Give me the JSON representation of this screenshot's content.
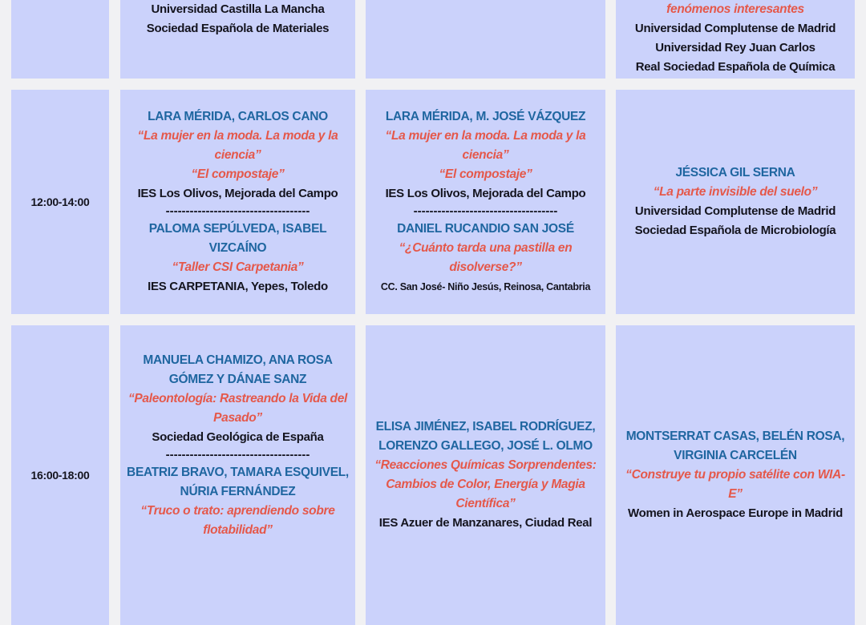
{
  "colors": {
    "cell": "#cbd2fb",
    "background": "#f1f1f3",
    "name": "#1f66a0",
    "title": "#e5584a",
    "org": "#14141e"
  },
  "rows": [
    {
      "time": "",
      "cells": [
        {
          "items": [
            {
              "type": "org",
              "text": "Universidad Castilla La Mancha"
            },
            {
              "type": "org",
              "text": "Sociedad Española de Materiales"
            }
          ]
        },
        {
          "items": []
        },
        {
          "items": [
            {
              "type": "title",
              "text": "fenómenos interesantes"
            },
            {
              "type": "org",
              "text": "Universidad Complutense de Madrid"
            },
            {
              "type": "org",
              "text": "Universidad Rey Juan Carlos"
            },
            {
              "type": "org",
              "text": "Real Sociedad Española de Química"
            }
          ]
        }
      ]
    },
    {
      "time": "12:00-14:00",
      "cells": [
        {
          "items": [
            {
              "type": "name",
              "text": "LARA MÉRIDA, CARLOS CANO"
            },
            {
              "type": "title",
              "text": "“La mujer en la moda. La moda y la ciencia”"
            },
            {
              "type": "title",
              "text": "“El compostaje”"
            },
            {
              "type": "org",
              "text": "IES Los Olivos, Mejorada del Campo"
            },
            {
              "type": "divider",
              "text": "------------------------------------"
            },
            {
              "type": "name",
              "text": "PALOMA SEPÚLVEDA, ISABEL VIZCAÍNO"
            },
            {
              "type": "title",
              "text": "“Taller CSI Carpetania”"
            },
            {
              "type": "org",
              "text": "IES CARPETANIA, Yepes, Toledo"
            }
          ]
        },
        {
          "items": [
            {
              "type": "name",
              "text": "LARA MÉRIDA, M. JOSÉ VÁZQUEZ"
            },
            {
              "type": "title",
              "text": "“La mujer en la moda. La moda y la ciencia”"
            },
            {
              "type": "title",
              "text": "“El compostaje”"
            },
            {
              "type": "org",
              "text": "IES Los Olivos,  Mejorada del Campo"
            },
            {
              "type": "divider",
              "text": "------------------------------------"
            },
            {
              "type": "name",
              "text": "DANIEL RUCANDIO SAN JOSÉ"
            },
            {
              "type": "title",
              "text": "“¿Cuánto tarda una pastilla en disolverse?”"
            },
            {
              "type": "org small",
              "text": "CC. San José- Niño Jesús, Reinosa, Cantabria"
            }
          ]
        },
        {
          "items": [
            {
              "type": "name",
              "text": "JÉSSICA GIL SERNA"
            },
            {
              "type": "title",
              "text": "“La parte invisible del suelo”"
            },
            {
              "type": "org",
              "text": "Universidad Complutense de Madrid"
            },
            {
              "type": "org",
              "text": "Sociedad Española de Microbiología"
            }
          ]
        }
      ]
    },
    {
      "time": "16:00-18:00",
      "cells": [
        {
          "items": [
            {
              "type": "name",
              "text": "MANUELA CHAMIZO, ANA ROSA GÓMEZ Y DÁNAE SANZ"
            },
            {
              "type": "title",
              "text": "“Paleontología: Rastreando la Vida del Pasado”"
            },
            {
              "type": "org",
              "text": "Sociedad Geológica de España"
            },
            {
              "type": "divider",
              "text": "------------------------------------"
            },
            {
              "type": "name",
              "text": "BEATRIZ BRAVO, TAMARA ESQUIVEL, NÚRIA FERNÁNDEZ"
            },
            {
              "type": "title",
              "text": "“Truco o trato: aprendiendo sobre flotabilidad”"
            }
          ]
        },
        {
          "items": [
            {
              "type": "name",
              "text": "ELISA JIMÉNEZ, ISABEL RODRÍGUEZ, LORENZO GALLEGO, JOSÉ L. OLMO"
            },
            {
              "type": "title",
              "text": "“Reacciones Químicas Sorprendentes: Cambios de Color, Energía y Magia Científica”"
            },
            {
              "type": "org",
              "text": "IES Azuer de Manzanares, Ciudad Real"
            }
          ]
        },
        {
          "items": [
            {
              "type": "name",
              "text": "MONTSERRAT CASAS, BELÉN ROSA, VIRGINIA CARCELÉN"
            },
            {
              "type": "title",
              "text": "“Construye tu propio satélite con WIA-E”"
            },
            {
              "type": "org",
              "text": "Women in Aerospace Europe in Madrid"
            }
          ]
        }
      ]
    }
  ]
}
